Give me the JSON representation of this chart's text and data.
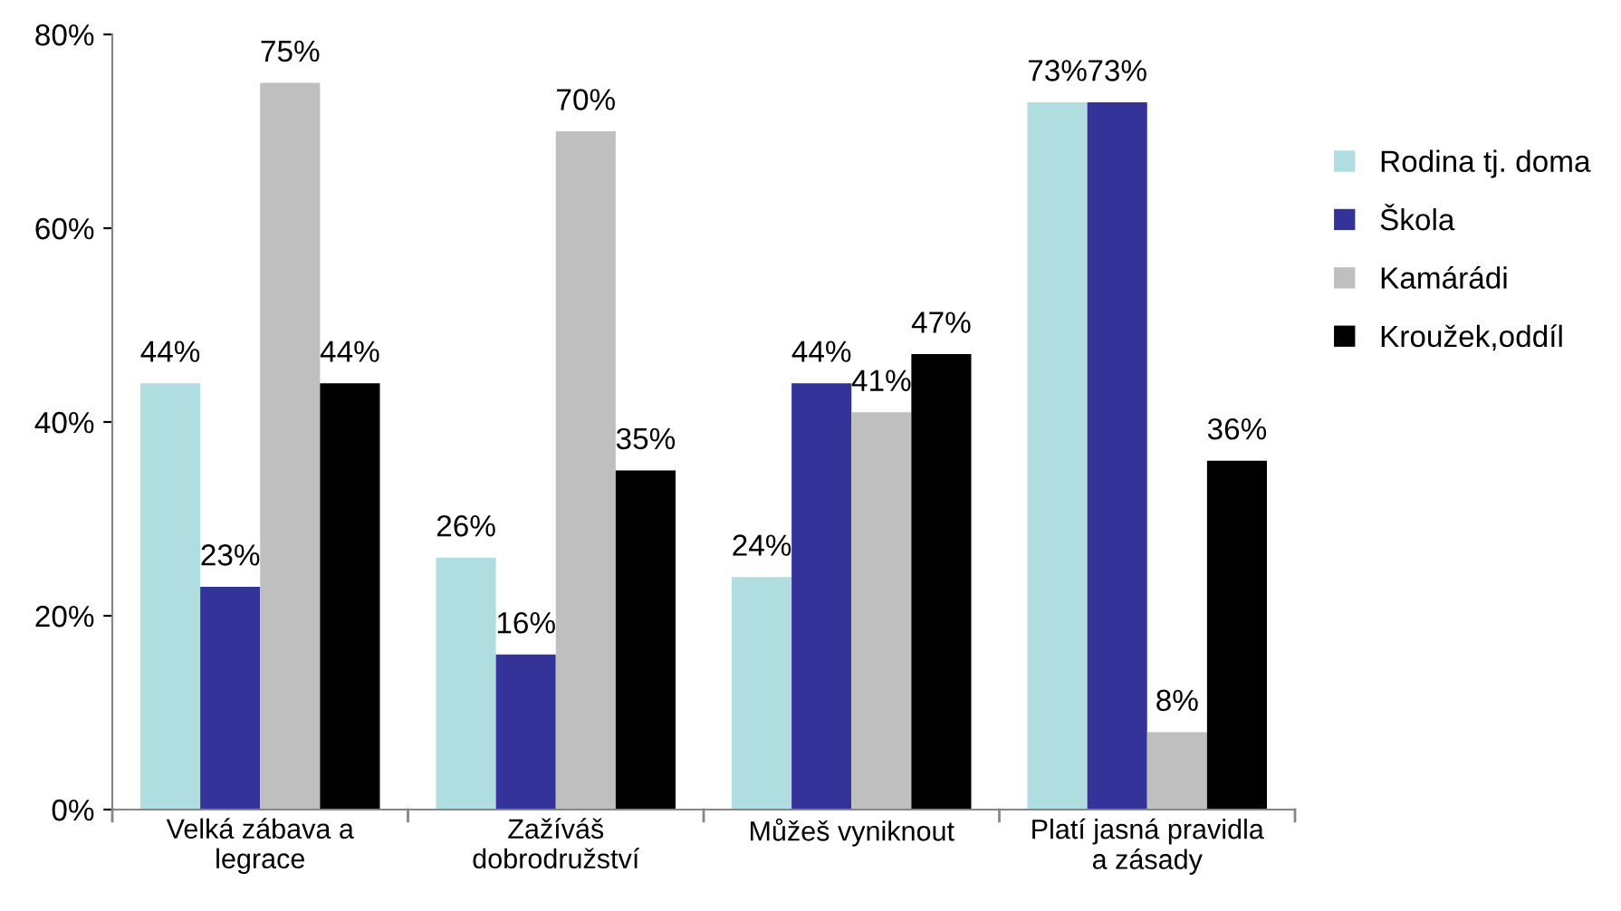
{
  "chart_data": {
    "type": "bar",
    "categories": [
      "Velká zábava a\nlegrace",
      "Zažíváš\ndobrodružství",
      "Můžeš vyniknout",
      "Platí jasná pravidla\na zásady"
    ],
    "series": [
      {
        "name": "Rodina tj. doma",
        "color": "#b0dde0",
        "values": [
          44,
          26,
          24,
          73
        ],
        "value_labels": [
          "44%",
          "26%",
          "24%",
          "73%"
        ]
      },
      {
        "name": "Škola",
        "color": "#333399",
        "values": [
          23,
          16,
          44,
          73
        ],
        "value_labels": [
          "23%",
          "16%",
          "44%",
          "73%"
        ]
      },
      {
        "name": "Kamárádi",
        "color": "#bfbfbf",
        "values": [
          75,
          70,
          41,
          8
        ],
        "value_labels": [
          "75%",
          "70%",
          "41%",
          "8%"
        ]
      },
      {
        "name": "Kroužek,oddíl",
        "color": "#000000",
        "values": [
          44,
          35,
          47,
          36
        ],
        "value_labels": [
          "44%",
          "35%",
          "47%",
          "36%"
        ]
      }
    ],
    "ylim": [
      0,
      80
    ],
    "yticks": [
      {
        "value": 0,
        "label": "0%"
      },
      {
        "value": 20,
        "label": "20%"
      },
      {
        "value": 40,
        "label": "40%"
      },
      {
        "value": 60,
        "label": "60%"
      },
      {
        "value": 80,
        "label": "80%"
      }
    ],
    "legend": "right",
    "grid": false
  }
}
